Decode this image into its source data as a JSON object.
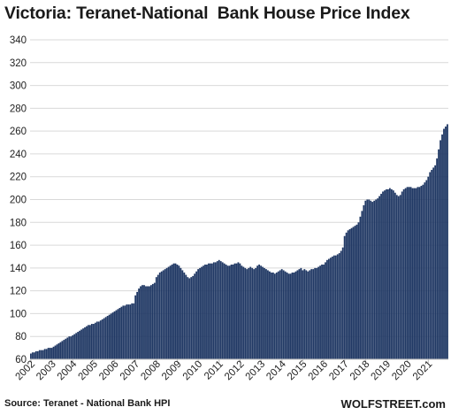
{
  "title": "Victoria: Teranet-National  Bank House Price Index",
  "source": "Source: Teranet - National Bank HPI",
  "brand": "WOLFSTREET.com",
  "colors": {
    "bar": "#203864",
    "grid": "#d9d9d9",
    "axis": "#bfbfbf"
  },
  "chart_data": {
    "type": "bar",
    "title": "Victoria: Teranet-National  Bank House Price Index",
    "xlabel": "",
    "ylabel": "",
    "ylim": [
      60,
      340
    ],
    "yticks": [
      60,
      80,
      100,
      120,
      140,
      160,
      180,
      200,
      220,
      240,
      260,
      280,
      300,
      320,
      340
    ],
    "grid": true,
    "legend": "none",
    "frequency": "monthly",
    "start": "2002-01",
    "end": "2021-08",
    "year_labels": [
      "2002",
      "2003",
      "2004",
      "2005",
      "2006",
      "2007",
      "2008",
      "2009",
      "2010",
      "2011",
      "2012",
      "2013",
      "2014",
      "2015",
      "2016",
      "2017",
      "2018",
      "2019",
      "2020",
      "2021"
    ],
    "values": [
      65,
      66,
      66,
      67,
      67,
      68,
      68,
      68,
      69,
      69,
      70,
      70,
      70,
      71,
      72,
      73,
      74,
      75,
      76,
      77,
      78,
      79,
      80,
      80,
      81,
      82,
      83,
      84,
      85,
      86,
      87,
      88,
      89,
      90,
      90,
      91,
      91,
      92,
      93,
      93,
      94,
      95,
      96,
      97,
      98,
      99,
      100,
      101,
      102,
      103,
      104,
      105,
      106,
      107,
      107,
      108,
      108,
      108,
      109,
      109,
      116,
      119,
      122,
      124,
      125,
      125,
      124,
      124,
      124,
      125,
      126,
      127,
      132,
      134,
      136,
      137,
      138,
      139,
      140,
      141,
      142,
      143,
      144,
      144,
      143,
      142,
      140,
      138,
      136,
      134,
      132,
      131,
      132,
      133,
      135,
      137,
      139,
      140,
      141,
      142,
      143,
      143,
      144,
      144,
      144,
      145,
      145,
      146,
      147,
      146,
      145,
      144,
      143,
      142,
      142,
      143,
      143,
      144,
      144,
      145,
      144,
      142,
      141,
      140,
      139,
      140,
      141,
      140,
      139,
      140,
      142,
      143,
      142,
      141,
      140,
      139,
      138,
      137,
      136,
      136,
      135,
      136,
      137,
      138,
      139,
      138,
      137,
      136,
      135,
      135,
      136,
      136,
      137,
      138,
      139,
      140,
      138,
      139,
      138,
      137,
      138,
      139,
      139,
      140,
      140,
      141,
      142,
      143,
      143,
      145,
      147,
      148,
      149,
      150,
      151,
      151,
      152,
      153,
      155,
      158,
      168,
      171,
      173,
      174,
      175,
      176,
      177,
      178,
      180,
      185,
      190,
      195,
      199,
      200,
      200,
      199,
      198,
      199,
      200,
      201,
      203,
      205,
      207,
      208,
      209,
      209,
      210,
      209,
      208,
      206,
      204,
      203,
      204,
      207,
      209,
      210,
      211,
      211,
      211,
      210,
      210,
      210,
      211,
      211,
      212,
      213,
      215,
      217,
      220,
      224,
      226,
      228,
      230,
      236,
      244,
      252,
      257,
      262,
      264,
      266
    ]
  }
}
